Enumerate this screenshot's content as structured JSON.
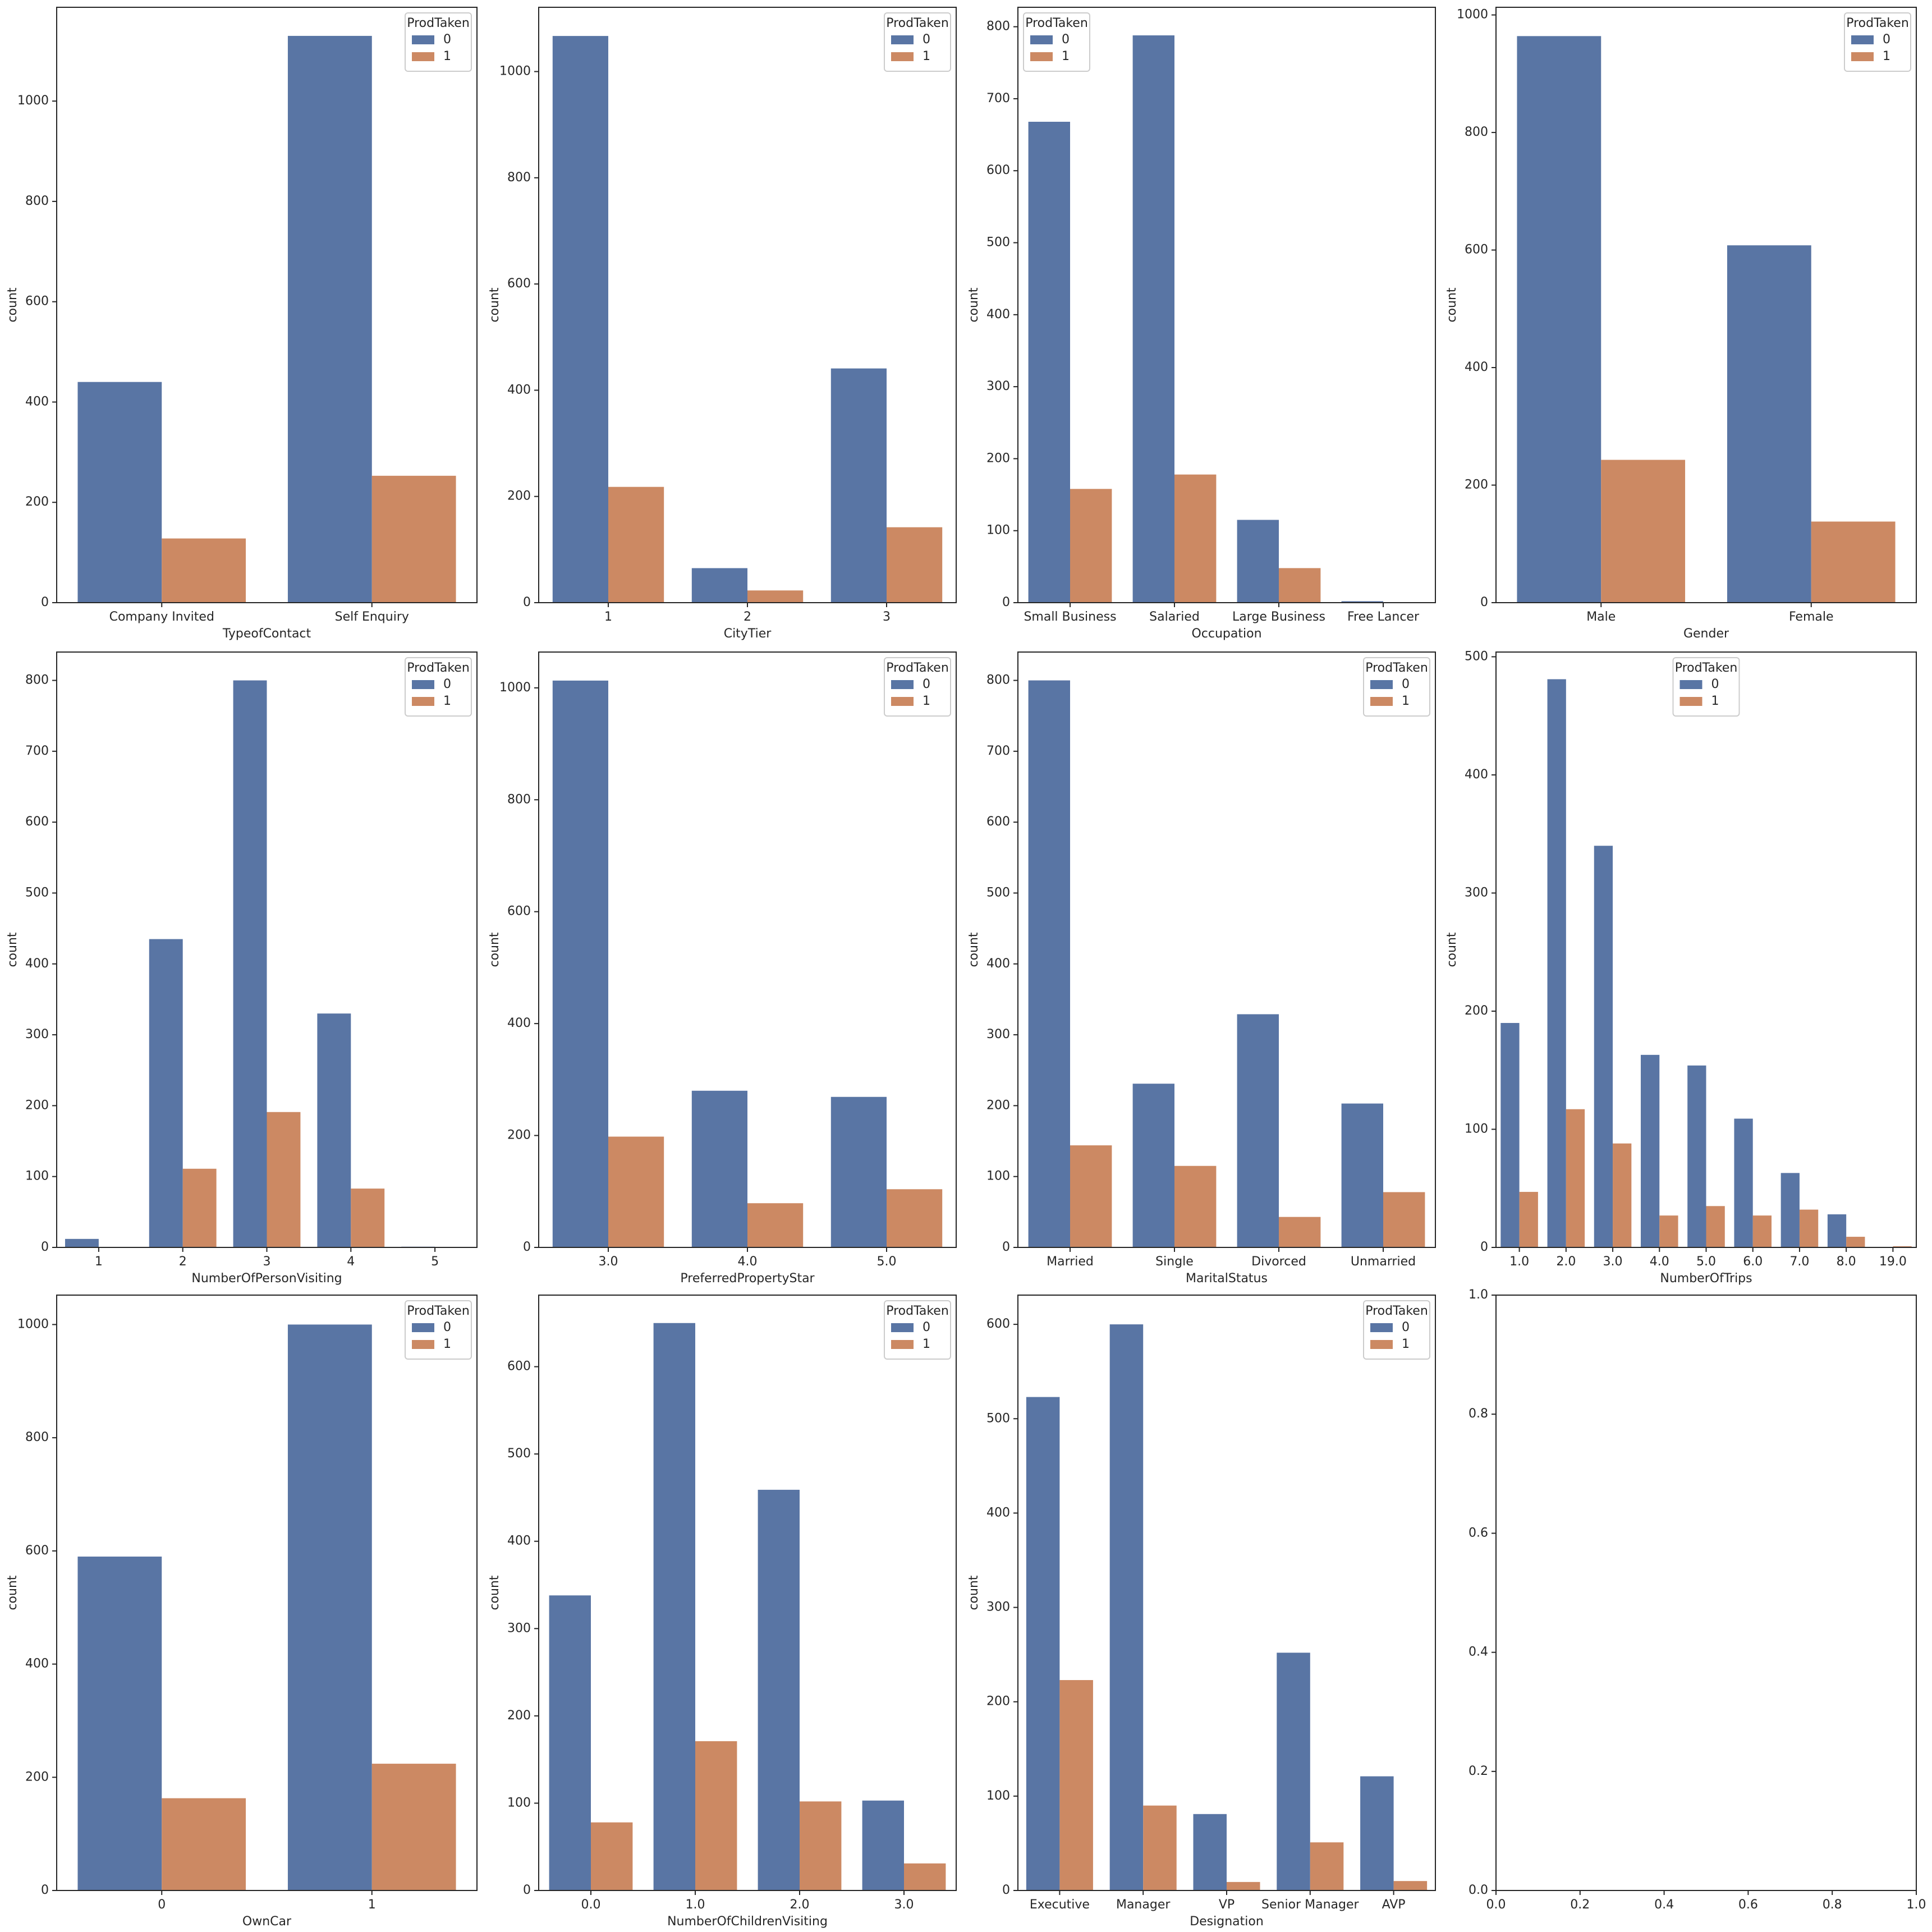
{
  "chart_data": [
    {
      "type": "bar",
      "xlabel": "TypeofContact",
      "ylabel": "count",
      "legend_title": "ProdTaken",
      "legend": "upper right",
      "categories": [
        "Company Invited",
        "Self Enquiry"
      ],
      "series": [
        {
          "name": "0",
          "color": "#5975a4",
          "values": [
            440,
            1130
          ]
        },
        {
          "name": "1",
          "color": "#cc8963",
          "values": [
            128,
            253
          ]
        }
      ],
      "ylim": [
        0,
        1187
      ],
      "yticks": [
        0,
        200,
        400,
        600,
        800,
        1000
      ]
    },
    {
      "type": "bar",
      "xlabel": "CityTier",
      "ylabel": "count",
      "legend_title": "ProdTaken",
      "legend": "upper right",
      "categories": [
        "1",
        "2",
        "3"
      ],
      "series": [
        {
          "name": "0",
          "color": "#5975a4",
          "values": [
            1067,
            65,
            441
          ]
        },
        {
          "name": "1",
          "color": "#cc8963",
          "values": [
            218,
            23,
            142
          ]
        }
      ],
      "ylim": [
        0,
        1121
      ],
      "yticks": [
        0,
        200,
        400,
        600,
        800,
        1000
      ]
    },
    {
      "type": "bar",
      "xlabel": "Occupation",
      "ylabel": "count",
      "legend_title": "ProdTaken",
      "legend": "upper left",
      "categories": [
        "Small Business",
        "Salaried",
        "Large Business",
        "Free Lancer"
      ],
      "series": [
        {
          "name": "0",
          "color": "#5975a4",
          "values": [
            668,
            788,
            115,
            2
          ]
        },
        {
          "name": "1",
          "color": "#cc8963",
          "values": [
            158,
            178,
            48,
            0
          ]
        }
      ],
      "ylim": [
        0,
        827
      ],
      "yticks": [
        0,
        100,
        200,
        300,
        400,
        500,
        600,
        700,
        800
      ]
    },
    {
      "type": "bar",
      "xlabel": "Gender",
      "ylabel": "count",
      "legend_title": "ProdTaken",
      "legend": "upper right",
      "categories": [
        "Male",
        "Female"
      ],
      "series": [
        {
          "name": "0",
          "color": "#5975a4",
          "values": [
            964,
            608
          ]
        },
        {
          "name": "1",
          "color": "#cc8963",
          "values": [
            243,
            138
          ]
        }
      ],
      "ylim": [
        0,
        1013
      ],
      "yticks": [
        0,
        200,
        400,
        600,
        800,
        1000
      ]
    },
    {
      "type": "bar",
      "xlabel": "NumberOfPersonVisiting",
      "ylabel": "count",
      "legend_title": "ProdTaken",
      "legend": "upper right",
      "categories": [
        "1",
        "2",
        "3",
        "4",
        "5"
      ],
      "series": [
        {
          "name": "0",
          "color": "#5975a4",
          "values": [
            12,
            435,
            800,
            330,
            1
          ]
        },
        {
          "name": "1",
          "color": "#cc8963",
          "values": [
            0,
            111,
            191,
            83,
            0
          ]
        }
      ],
      "ylim": [
        0,
        840
      ],
      "yticks": [
        0,
        100,
        200,
        300,
        400,
        500,
        600,
        700,
        800
      ]
    },
    {
      "type": "bar",
      "xlabel": "PreferredPropertyStar",
      "ylabel": "count",
      "legend_title": "ProdTaken",
      "legend": "upper right",
      "categories": [
        "3.0",
        "4.0",
        "5.0"
      ],
      "series": [
        {
          "name": "0",
          "color": "#5975a4",
          "values": [
            1013,
            280,
            269
          ]
        },
        {
          "name": "1",
          "color": "#cc8963",
          "values": [
            198,
            79,
            104
          ]
        }
      ],
      "ylim": [
        0,
        1064
      ],
      "yticks": [
        0,
        200,
        400,
        600,
        800,
        1000
      ]
    },
    {
      "type": "bar",
      "xlabel": "MaritalStatus",
      "ylabel": "count",
      "legend_title": "ProdTaken",
      "legend": "upper right",
      "categories": [
        "Married",
        "Single",
        "Divorced",
        "Unmarried"
      ],
      "series": [
        {
          "name": "0",
          "color": "#5975a4",
          "values": [
            800,
            231,
            329,
            203
          ]
        },
        {
          "name": "1",
          "color": "#cc8963",
          "values": [
            144,
            115,
            43,
            78
          ]
        }
      ],
      "ylim": [
        0,
        840
      ],
      "yticks": [
        0,
        100,
        200,
        300,
        400,
        500,
        600,
        700,
        800
      ]
    },
    {
      "type": "bar",
      "xlabel": "NumberOfTrips",
      "ylabel": "count",
      "legend_title": "ProdTaken",
      "legend": "upper center",
      "categories": [
        "1.0",
        "2.0",
        "3.0",
        "4.0",
        "5.0",
        "6.0",
        "7.0",
        "8.0",
        "19.0"
      ],
      "series": [
        {
          "name": "0",
          "color": "#5975a4",
          "values": [
            190,
            481,
            340,
            163,
            154,
            109,
            63,
            28,
            0
          ]
        },
        {
          "name": "1",
          "color": "#cc8963",
          "values": [
            47,
            117,
            88,
            27,
            35,
            27,
            32,
            9,
            1
          ]
        }
      ],
      "ylim": [
        0,
        504
      ],
      "yticks": [
        0,
        100,
        200,
        300,
        400,
        500
      ]
    },
    {
      "type": "bar",
      "xlabel": "OwnCar",
      "ylabel": "count",
      "legend_title": "ProdTaken",
      "legend": "upper right",
      "categories": [
        "0",
        "1"
      ],
      "series": [
        {
          "name": "0",
          "color": "#5975a4",
          "values": [
            590,
            1000
          ]
        },
        {
          "name": "1",
          "color": "#cc8963",
          "values": [
            163,
            224
          ]
        }
      ],
      "ylim": [
        0,
        1052
      ],
      "yticks": [
        0,
        200,
        400,
        600,
        800,
        1000
      ]
    },
    {
      "type": "bar",
      "xlabel": "NumberOfChildrenVisiting",
      "ylabel": "count",
      "legend_title": "ProdTaken",
      "legend": "upper right",
      "categories": [
        "0.0",
        "1.0",
        "2.0",
        "3.0"
      ],
      "series": [
        {
          "name": "0",
          "color": "#5975a4",
          "values": [
            338,
            650,
            459,
            103
          ]
        },
        {
          "name": "1",
          "color": "#cc8963",
          "values": [
            78,
            171,
            102,
            31
          ]
        }
      ],
      "ylim": [
        0,
        682
      ],
      "yticks": [
        0,
        100,
        200,
        300,
        400,
        500,
        600
      ]
    },
    {
      "type": "bar",
      "xlabel": "Designation",
      "ylabel": "count",
      "legend_title": "ProdTaken",
      "legend": "upper right",
      "categories": [
        "Executive",
        "Manager",
        "VP",
        "Senior Manager",
        "AVP"
      ],
      "series": [
        {
          "name": "0",
          "color": "#5975a4",
          "values": [
            523,
            600,
            81,
            252,
            121
          ]
        },
        {
          "name": "1",
          "color": "#cc8963",
          "values": [
            223,
            90,
            9,
            51,
            10
          ]
        }
      ],
      "ylim": [
        0,
        631
      ],
      "yticks": [
        0,
        100,
        200,
        300,
        400,
        500,
        600
      ]
    },
    {
      "type": "empty",
      "xlim": [
        0,
        1
      ],
      "ylim": [
        0,
        1
      ],
      "xticks": [
        {
          "value": 0,
          "label": "0.0"
        },
        0.2,
        0.4,
        0.6,
        0.8,
        {
          "value": 1,
          "label": "1.0"
        }
      ],
      "yticks": [
        {
          "value": 0,
          "label": "0.0"
        },
        0.2,
        0.4,
        0.6,
        0.8,
        {
          "value": 1,
          "label": "1.0"
        }
      ]
    }
  ]
}
